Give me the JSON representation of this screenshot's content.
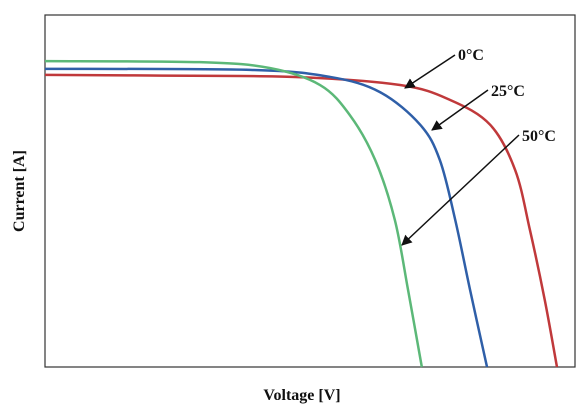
{
  "chart_data": {
    "type": "line",
    "xlabel": "Voltage [V]",
    "ylabel": "Current [A]",
    "xlim": [
      0,
      100
    ],
    "ylim": [
      0,
      100
    ],
    "series": [
      {
        "name": "0°C",
        "color": "#c0393b",
        "x": [
          0,
          19.8,
          47.2,
          67,
          76.4,
          84,
          88.7,
          91.5,
          94.3,
          96.6
        ],
        "values": [
          83,
          82.8,
          82.4,
          80.1,
          75.9,
          68.8,
          56,
          38.9,
          19,
          0
        ]
      },
      {
        "name": "25°C",
        "color": "#2f5fa8",
        "x": [
          0,
          38.7,
          53.8,
          63.2,
          70.8,
          74.5,
          77.4,
          80.2,
          83.4
        ],
        "values": [
          84.7,
          84.4,
          82.4,
          78.1,
          68.8,
          58.8,
          41.8,
          21.9,
          0
        ]
      },
      {
        "name": "50°C",
        "color": "#5cb878",
        "x": [
          0,
          29.2,
          42.5,
          51.9,
          57.5,
          62.3,
          66,
          68.5,
          71.1
        ],
        "values": [
          86.9,
          86.6,
          84.9,
          80.1,
          71.6,
          58.8,
          41.8,
          21.9,
          0
        ]
      }
    ]
  }
}
